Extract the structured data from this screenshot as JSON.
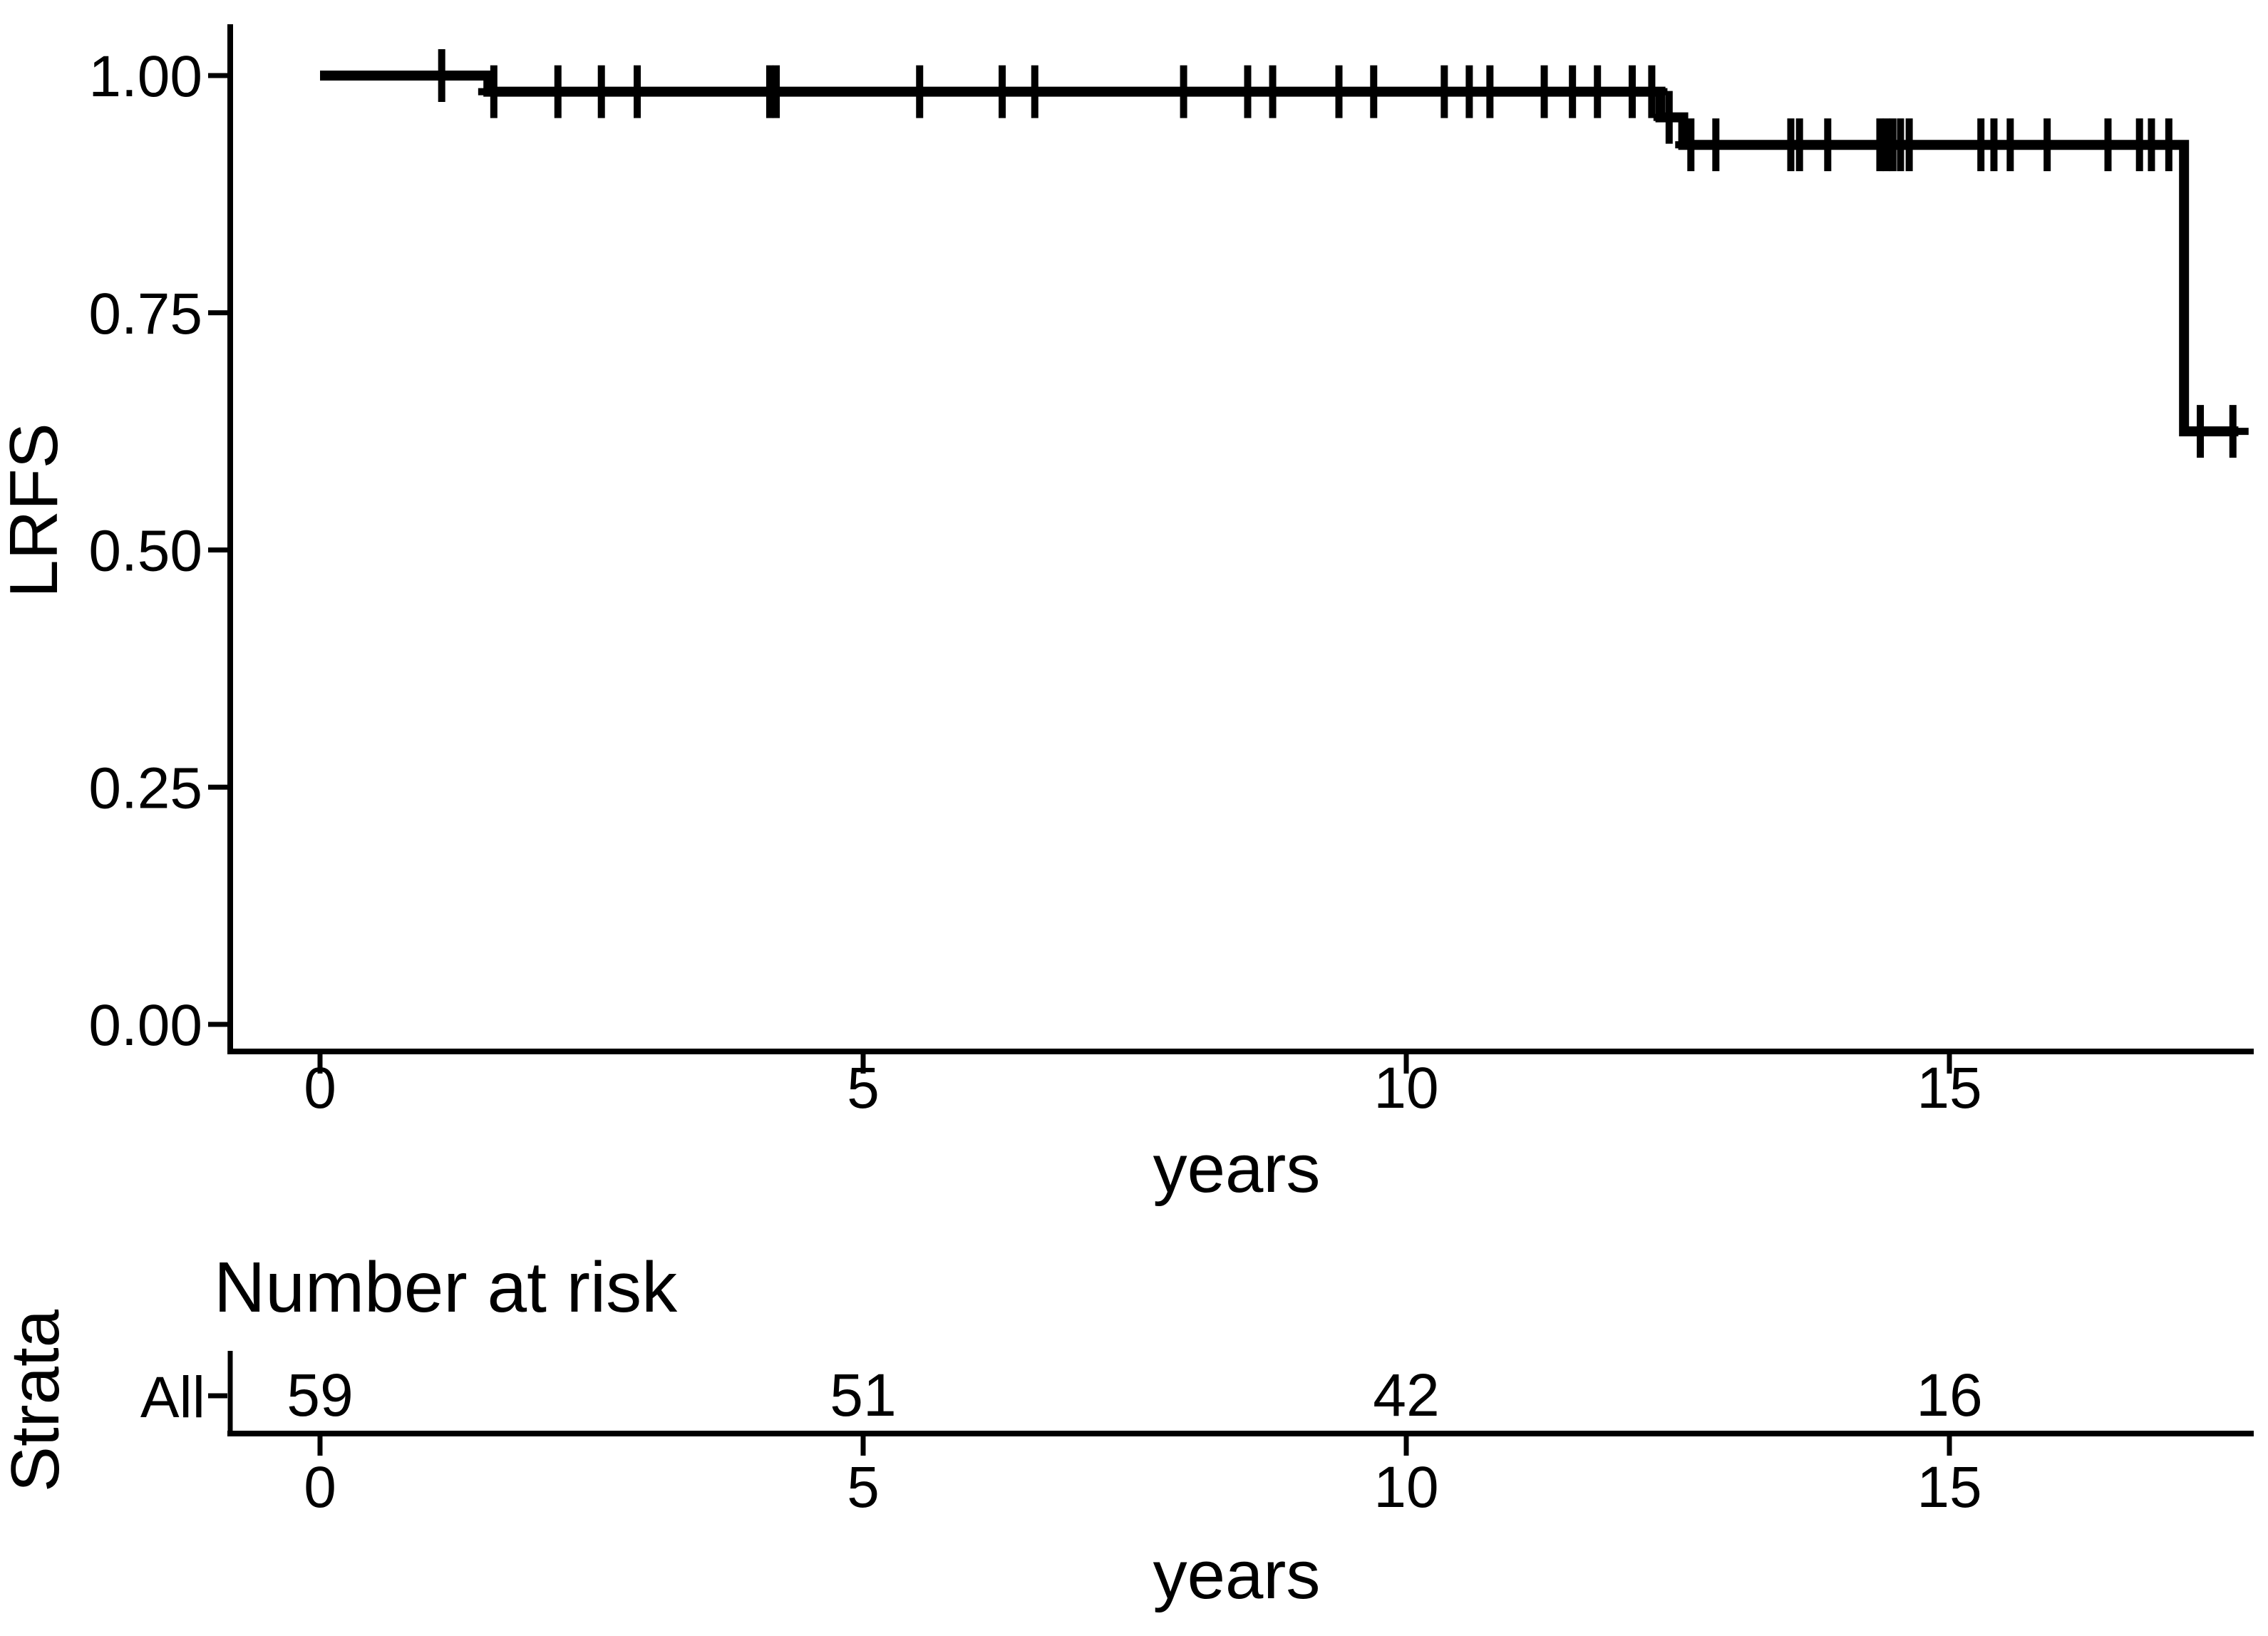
{
  "figure": {
    "background_color": "#ffffff",
    "foreground_color": "#000000"
  },
  "chart_data": {
    "type": "line",
    "subtype": "kaplan-meier-step",
    "title": "",
    "ylabel": "LRFS",
    "xlabel": "years",
    "xlim": [
      -0.82,
      17.95
    ],
    "ylim": [
      -0.028,
      1.055
    ],
    "grid": "off",
    "legend": "none",
    "x_ticks": {
      "values": [
        0,
        5,
        10,
        15
      ],
      "labels": [
        "0",
        "5",
        "10",
        "15"
      ]
    },
    "y_ticks": {
      "values": [
        1.0,
        0.75,
        0.5,
        0.25,
        0.0
      ],
      "labels": [
        "1.00",
        "0.75",
        "0.50",
        "0.25",
        "0.00"
      ]
    },
    "series": [
      {
        "name": "All",
        "color": "#000000",
        "steps": [
          [
            0.0,
            1.0
          ],
          [
            1.55,
            1.0
          ],
          [
            1.55,
            0.983
          ],
          [
            12.34,
            0.983
          ],
          [
            12.34,
            0.956
          ],
          [
            12.55,
            0.956
          ],
          [
            12.55,
            0.927
          ],
          [
            17.16,
            0.927
          ],
          [
            17.16,
            0.625
          ],
          [
            17.66,
            0.625
          ]
        ],
        "censor_marks": [
          [
            1.12,
            1.0
          ],
          [
            1.6,
            0.983
          ],
          [
            2.19,
            0.983
          ],
          [
            2.59,
            0.983
          ],
          [
            2.92,
            0.983
          ],
          [
            4.14,
            0.983
          ],
          [
            4.2,
            0.983
          ],
          [
            5.52,
            0.983
          ],
          [
            6.28,
            0.983
          ],
          [
            6.58,
            0.983
          ],
          [
            7.95,
            0.983
          ],
          [
            8.54,
            0.983
          ],
          [
            8.77,
            0.983
          ],
          [
            9.38,
            0.983
          ],
          [
            9.7,
            0.983
          ],
          [
            10.35,
            0.983
          ],
          [
            10.58,
            0.983
          ],
          [
            10.77,
            0.983
          ],
          [
            11.27,
            0.983
          ],
          [
            11.53,
            0.983
          ],
          [
            11.76,
            0.983
          ],
          [
            12.08,
            0.983
          ],
          [
            12.26,
            0.983
          ],
          [
            12.42,
            0.956
          ],
          [
            12.62,
            0.927
          ],
          [
            12.85,
            0.927
          ],
          [
            13.54,
            0.927
          ],
          [
            13.62,
            0.927
          ],
          [
            13.88,
            0.927
          ],
          [
            14.36,
            0.927
          ],
          [
            14.42,
            0.927
          ],
          [
            14.48,
            0.927
          ],
          [
            14.55,
            0.927
          ],
          [
            14.63,
            0.927
          ],
          [
            15.29,
            0.927
          ],
          [
            15.41,
            0.927
          ],
          [
            15.56,
            0.927
          ],
          [
            15.9,
            0.927
          ],
          [
            16.46,
            0.927
          ],
          [
            16.75,
            0.927
          ],
          [
            16.86,
            0.927
          ],
          [
            17.02,
            0.927
          ],
          [
            17.31,
            0.625
          ],
          [
            17.61,
            0.625
          ]
        ]
      }
    ],
    "risk_table": {
      "title": "Number at risk",
      "ylabel": "Strata",
      "xlabel": "years",
      "x_ticks": {
        "values": [
          0,
          5,
          10,
          15
        ],
        "labels": [
          "0",
          "5",
          "10",
          "15"
        ]
      },
      "rows": [
        {
          "label": "All",
          "times": [
            0,
            5,
            10,
            15
          ],
          "counts": [
            "59",
            "51",
            "42",
            "16"
          ]
        }
      ]
    }
  }
}
